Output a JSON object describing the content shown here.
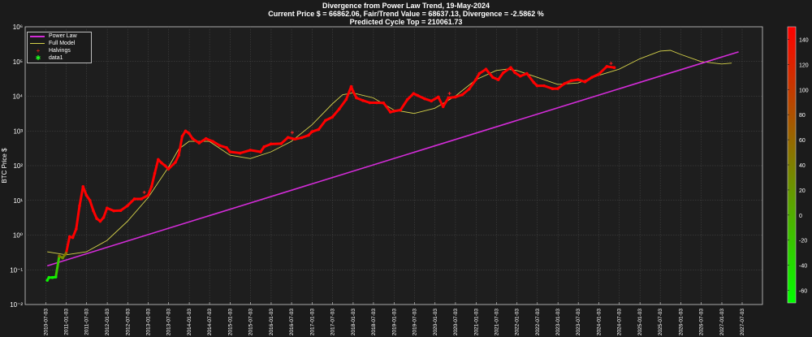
{
  "title": {
    "line1": "Divergence from Power Law Trend, 19-May-2024",
    "line2": "Current Price $ = 66862.06, Fair/Trend Value = 68637.13, Divergence = -2.5862 %",
    "line3": "Predicted Cycle Top = 210061.73"
  },
  "legend": {
    "items": [
      {
        "label": "Power Law",
        "color": "#d32cd8",
        "kind": "line"
      },
      {
        "label": "Full Model",
        "color": "#d6d24a",
        "kind": "line"
      },
      {
        "label": "Halvings",
        "color": "#ff2020",
        "kind": "marker",
        "symbol": "+"
      },
      {
        "label": "data1",
        "color": "#20ff20",
        "kind": "marker",
        "symbol": "✱"
      }
    ]
  },
  "colorbar": {
    "min": -70,
    "max": 150,
    "ticks": [
      "140",
      "120",
      "100",
      "80",
      "60",
      "40",
      "20",
      "0",
      "-20",
      "-40",
      "-60"
    ],
    "tick_values": [
      140,
      120,
      100,
      80,
      60,
      40,
      20,
      0,
      -20,
      -40,
      -60
    ]
  },
  "chart_data": {
    "type": "scatter",
    "title": "Divergence from Power Law Trend, 19-May-2024",
    "ylabel": "BTC Price $",
    "yscale": "log",
    "ylim": [
      0.01,
      1000000
    ],
    "ytick_labels": [
      "10⁶",
      "10⁵",
      "10⁴",
      "10³",
      "10²",
      "10¹",
      "10⁰",
      "10⁻¹",
      "10⁻²"
    ],
    "ytick_exponents": [
      6,
      5,
      4,
      3,
      2,
      1,
      0,
      -1,
      -2
    ],
    "xlim": [
      "2010-01-01",
      "2027-12-31"
    ],
    "xtick_labels": [
      "2010-07-03",
      "2011-01-03",
      "2011-07-03",
      "2012-01-03",
      "2012-07-03",
      "2013-01-03",
      "2013-07-03",
      "2014-01-03",
      "2014-07-03",
      "2015-01-03",
      "2015-07-03",
      "2016-01-03",
      "2016-07-03",
      "2017-01-03",
      "2017-07-03",
      "2018-01-03",
      "2018-07-03",
      "2019-01-03",
      "2019-07-03",
      "2020-01-03",
      "2020-07-03",
      "2021-01-03",
      "2021-07-03",
      "2022-01-03",
      "2022-07-03",
      "2023-01-03",
      "2023-07-03",
      "2024-01-03",
      "2024-07-03",
      "2025-01-03",
      "2025-07-03",
      "2026-01-03",
      "2026-07-03",
      "2027-01-03",
      "2027-07-03"
    ],
    "grid": true,
    "legend_position": "top-left",
    "power_law": {
      "name": "Power Law",
      "points": [
        [
          "2010-07-17",
          0.13
        ],
        [
          "2027-06-01",
          190000
        ]
      ]
    },
    "full_model": {
      "name": "Full Model",
      "points": [
        [
          "2010-07-17",
          0.33
        ],
        [
          "2011-01-01",
          0.27
        ],
        [
          "2011-07-01",
          0.33
        ],
        [
          "2012-01-01",
          0.7
        ],
        [
          "2012-07-01",
          2.5
        ],
        [
          "2013-01-01",
          12
        ],
        [
          "2013-07-01",
          90
        ],
        [
          "2013-10-01",
          300
        ],
        [
          "2014-01-01",
          500
        ],
        [
          "2014-07-01",
          500
        ],
        [
          "2015-01-01",
          200
        ],
        [
          "2015-07-01",
          160
        ],
        [
          "2016-01-01",
          250
        ],
        [
          "2016-07-01",
          500
        ],
        [
          "2017-01-01",
          1500
        ],
        [
          "2017-07-01",
          6000
        ],
        [
          "2017-10-01",
          11000
        ],
        [
          "2018-01-01",
          12500
        ],
        [
          "2018-07-01",
          9000
        ],
        [
          "2019-01-01",
          4000
        ],
        [
          "2019-07-01",
          3200
        ],
        [
          "2020-01-01",
          4500
        ],
        [
          "2020-07-01",
          10000
        ],
        [
          "2021-01-01",
          30000
        ],
        [
          "2021-07-01",
          55000
        ],
        [
          "2021-10-01",
          60000
        ],
        [
          "2022-01-01",
          55000
        ],
        [
          "2022-07-01",
          35000
        ],
        [
          "2023-01-01",
          22000
        ],
        [
          "2023-07-01",
          24000
        ],
        [
          "2024-01-01",
          40000
        ],
        [
          "2024-07-01",
          60000
        ],
        [
          "2025-01-01",
          120000
        ],
        [
          "2025-07-01",
          200000
        ],
        [
          "2025-10-01",
          210000
        ],
        [
          "2026-01-01",
          160000
        ],
        [
          "2026-07-01",
          100000
        ],
        [
          "2027-01-01",
          85000
        ],
        [
          "2027-04-01",
          90000
        ]
      ]
    },
    "halvings": {
      "name": "Halvings",
      "points": [
        [
          "2012-11-28",
          12.35
        ],
        [
          "2016-07-09",
          650
        ],
        [
          "2020-05-11",
          8700
        ],
        [
          "2024-04-20",
          63800
        ]
      ]
    },
    "price": {
      "name": "data1",
      "points": [
        [
          "2010-07-17",
          0.05
        ],
        [
          "2010-08-01",
          0.06
        ],
        [
          "2010-09-01",
          0.06
        ],
        [
          "2010-10-01",
          0.062
        ],
        [
          "2010-11-01",
          0.25
        ],
        [
          "2010-12-01",
          0.22
        ],
        [
          "2011-01-01",
          0.3
        ],
        [
          "2011-02-01",
          0.9
        ],
        [
          "2011-03-01",
          0.85
        ],
        [
          "2011-04-01",
          1.5
        ],
        [
          "2011-05-01",
          7
        ],
        [
          "2011-06-01",
          25
        ],
        [
          "2011-07-01",
          14
        ],
        [
          "2011-08-01",
          10
        ],
        [
          "2011-09-01",
          5
        ],
        [
          "2011-10-01",
          3
        ],
        [
          "2011-11-01",
          2.5
        ],
        [
          "2011-12-01",
          3.2
        ],
        [
          "2012-01-01",
          6
        ],
        [
          "2012-03-01",
          5
        ],
        [
          "2012-05-01",
          5.1
        ],
        [
          "2012-07-01",
          7
        ],
        [
          "2012-09-01",
          11
        ],
        [
          "2012-11-01",
          11
        ],
        [
          "2013-01-01",
          14
        ],
        [
          "2013-02-01",
          25
        ],
        [
          "2013-03-01",
          60
        ],
        [
          "2013-04-01",
          150
        ],
        [
          "2013-05-01",
          120
        ],
        [
          "2013-06-01",
          100
        ],
        [
          "2013-07-01",
          80
        ],
        [
          "2013-09-01",
          125
        ],
        [
          "2013-10-01",
          200
        ],
        [
          "2013-11-01",
          700
        ],
        [
          "2013-12-01",
          1000
        ],
        [
          "2014-01-01",
          850
        ],
        [
          "2014-02-01",
          600
        ],
        [
          "2014-04-01",
          450
        ],
        [
          "2014-06-01",
          600
        ],
        [
          "2014-08-01",
          500
        ],
        [
          "2014-10-01",
          380
        ],
        [
          "2014-12-01",
          330
        ],
        [
          "2015-01-01",
          250
        ],
        [
          "2015-04-01",
          230
        ],
        [
          "2015-07-01",
          280
        ],
        [
          "2015-10-01",
          250
        ],
        [
          "2015-11-01",
          350
        ],
        [
          "2016-01-01",
          420
        ],
        [
          "2016-04-01",
          430
        ],
        [
          "2016-06-01",
          650
        ],
        [
          "2016-08-01",
          580
        ],
        [
          "2016-10-01",
          640
        ],
        [
          "2016-12-01",
          750
        ],
        [
          "2017-01-01",
          950
        ],
        [
          "2017-03-01",
          1100
        ],
        [
          "2017-05-01",
          2000
        ],
        [
          "2017-07-01",
          2500
        ],
        [
          "2017-09-01",
          4300
        ],
        [
          "2017-11-01",
          8000
        ],
        [
          "2017-12-17",
          19000
        ],
        [
          "2018-01-01",
          14000
        ],
        [
          "2018-02-01",
          9000
        ],
        [
          "2018-04-01",
          7500
        ],
        [
          "2018-06-01",
          6500
        ],
        [
          "2018-08-01",
          6500
        ],
        [
          "2018-10-01",
          6400
        ],
        [
          "2018-12-01",
          3500
        ],
        [
          "2019-01-01",
          3700
        ],
        [
          "2019-03-01",
          4000
        ],
        [
          "2019-05-01",
          8000
        ],
        [
          "2019-06-26",
          12000
        ],
        [
          "2019-08-01",
          10500
        ],
        [
          "2019-10-01",
          8500
        ],
        [
          "2019-12-01",
          7300
        ],
        [
          "2020-02-01",
          9500
        ],
        [
          "2020-03-15",
          5000
        ],
        [
          "2020-05-01",
          9000
        ],
        [
          "2020-07-01",
          9500
        ],
        [
          "2020-09-01",
          11000
        ],
        [
          "2020-11-01",
          16000
        ],
        [
          "2021-01-01",
          30000
        ],
        [
          "2021-02-01",
          45000
        ],
        [
          "2021-04-01",
          60000
        ],
        [
          "2021-06-01",
          35000
        ],
        [
          "2021-07-20",
          30000
        ],
        [
          "2021-09-01",
          47000
        ],
        [
          "2021-11-08",
          67000
        ],
        [
          "2021-12-15",
          48000
        ],
        [
          "2022-02-01",
          38000
        ],
        [
          "2022-04-01",
          45000
        ],
        [
          "2022-06-01",
          25000
        ],
        [
          "2022-07-01",
          20000
        ],
        [
          "2022-09-01",
          20000
        ],
        [
          "2022-11-15",
          16500
        ],
        [
          "2023-01-01",
          16600
        ],
        [
          "2023-03-01",
          23000
        ],
        [
          "2023-05-01",
          28000
        ],
        [
          "2023-07-01",
          30000
        ],
        [
          "2023-09-01",
          26000
        ],
        [
          "2023-11-01",
          35000
        ],
        [
          "2024-01-01",
          43000
        ],
        [
          "2024-03-14",
          72000
        ],
        [
          "2024-05-19",
          66862
        ]
      ]
    }
  }
}
